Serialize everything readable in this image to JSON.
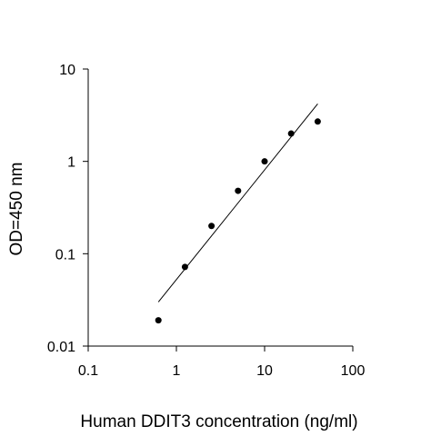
{
  "chart_data": {
    "type": "scatter",
    "title": "",
    "xlabel": "Human DDIT3 concentration (ng/ml)",
    "ylabel": "OD=450 nm",
    "x_scale": "log",
    "y_scale": "log",
    "xlim": [
      0.1,
      100
    ],
    "ylim": [
      0.01,
      10
    ],
    "x_ticks": [
      0.1,
      1,
      10,
      100
    ],
    "x_tick_labels": [
      "0.1",
      "1",
      "10",
      "100"
    ],
    "y_ticks": [
      0.01,
      0.1,
      1,
      10
    ],
    "y_tick_labels": [
      "0.01",
      "0.1",
      "1",
      "10"
    ],
    "grid": false,
    "legend": "none",
    "points": [
      {
        "x": 0.625,
        "y": 0.019
      },
      {
        "x": 1.25,
        "y": 0.072
      },
      {
        "x": 2.5,
        "y": 0.2
      },
      {
        "x": 5,
        "y": 0.48
      },
      {
        "x": 10,
        "y": 1.0
      },
      {
        "x": 20,
        "y": 2.0
      },
      {
        "x": 40,
        "y": 2.7
      }
    ],
    "fit_line": [
      {
        "x": 0.625,
        "y": 0.03
      },
      {
        "x": 40,
        "y": 4.2
      }
    ],
    "colors": {
      "points": "#000000",
      "line": "#000000",
      "axes": "#000000"
    }
  }
}
